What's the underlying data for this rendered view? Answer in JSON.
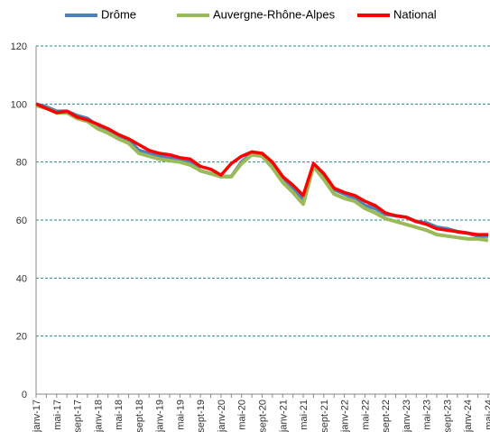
{
  "chart_data": {
    "type": "line",
    "categories": [
      "janv-17",
      null,
      "mai-17",
      null,
      "sept-17",
      null,
      "janv-18",
      null,
      "mai-18",
      null,
      "sept-18",
      null,
      "janv-19",
      null,
      "mai-19",
      null,
      "sept-19",
      null,
      "janv-20",
      null,
      "mai-20",
      null,
      "sept-20",
      null,
      "janv-21",
      null,
      "mai-21",
      null,
      "sept-21",
      null,
      "janv-22",
      null,
      "mai-22",
      null,
      "sept-22",
      null,
      "janv-23",
      null,
      "mai-23",
      null,
      "sept-23",
      null,
      "janv-24",
      null,
      "mai-24"
    ],
    "series": [
      {
        "name": "Drôme",
        "color": "#4f81bd",
        "values": [
          100,
          99,
          97.5,
          97.5,
          96,
          95,
          92.5,
          91,
          88.5,
          87.5,
          84,
          83,
          82,
          81.5,
          80.5,
          80,
          77,
          76,
          75,
          75,
          80,
          83,
          82.5,
          79,
          74,
          71,
          67,
          79,
          75,
          70.5,
          69,
          67.5,
          65,
          64,
          62,
          61.5,
          61,
          59.5,
          59,
          57.5,
          57,
          56,
          55.5,
          54.5,
          54.5
        ]
      },
      {
        "name": "Auvergne-Rhône-Alpes",
        "color": "#9bbb59",
        "values": [
          99.5,
          98.5,
          97,
          97,
          95,
          94,
          91.5,
          90,
          88,
          86.5,
          83,
          82,
          81,
          80.5,
          80,
          79,
          77,
          76,
          75,
          75,
          79.5,
          82.5,
          82,
          78,
          73,
          69.5,
          65.5,
          78.5,
          74,
          69,
          67.5,
          66.5,
          64,
          62.5,
          60.5,
          59.5,
          58.5,
          57.5,
          56.5,
          55,
          54.5,
          54,
          53.5,
          53.5,
          53
        ]
      },
      {
        "name": "National",
        "color": "#ff0000",
        "values": [
          100,
          98.5,
          97,
          97.5,
          95.5,
          94.5,
          93,
          91.5,
          89.5,
          88,
          86,
          84,
          83,
          82.5,
          81.5,
          81,
          78.5,
          77.5,
          75.5,
          79.5,
          82,
          83.5,
          83,
          80,
          75,
          72,
          68.5,
          79.5,
          76,
          71,
          69.5,
          68.5,
          66.5,
          65,
          62.5,
          61.5,
          61,
          59.5,
          58.5,
          57,
          56.5,
          56,
          55.5,
          55,
          55
        ]
      }
    ],
    "ylim": [
      0,
      120
    ],
    "yticks": [
      0,
      20,
      40,
      60,
      80,
      100,
      120
    ],
    "grid": true,
    "legend": "top"
  }
}
